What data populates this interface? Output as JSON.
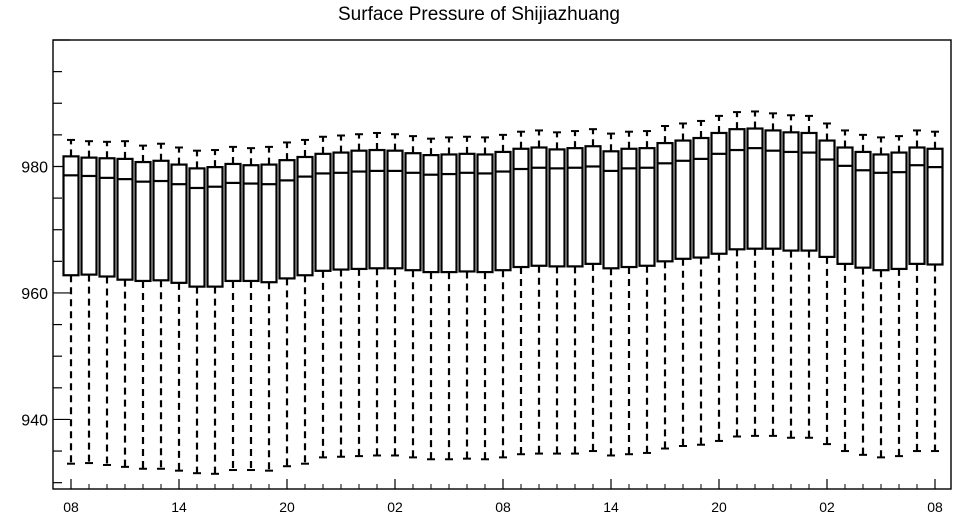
{
  "chart_data": {
    "type": "boxplot",
    "title": "Surface Pressure of Shijiazhuang",
    "xlabel": "",
    "ylabel": "",
    "ylim": [
      929,
      1000
    ],
    "yticks": [
      940,
      960,
      980
    ],
    "xtick_labels": [
      "08",
      "14",
      "20",
      "02",
      "08",
      "14",
      "20",
      "02",
      "08"
    ],
    "xtick_index": [
      0,
      6,
      12,
      18,
      24,
      30,
      36,
      42,
      48
    ],
    "grid": false,
    "n_boxes": 49,
    "series": [
      {
        "q1": [
          962.8,
          962.9,
          962.6,
          962.1,
          961.9,
          962.0,
          961.6,
          961.0,
          961.0,
          961.9,
          961.9,
          961.7,
          962.3,
          962.8,
          963.5,
          963.7,
          963.8,
          963.9,
          963.9,
          963.6,
          963.3,
          963.3,
          963.4,
          963.3,
          963.6,
          964.1,
          964.3,
          964.2,
          964.2,
          964.6,
          963.9,
          964.1,
          964.3,
          965.0,
          965.4,
          965.6,
          966.2,
          966.9,
          967.0,
          967.0,
          966.7,
          966.7,
          965.7,
          964.6,
          964.0,
          963.6,
          963.8,
          964.6,
          964.5
        ],
        "median": [
          978.6,
          978.5,
          978.2,
          978.0,
          977.6,
          977.7,
          977.2,
          976.6,
          976.8,
          977.4,
          977.3,
          977.2,
          977.8,
          978.4,
          978.9,
          979.0,
          979.2,
          979.3,
          979.3,
          979.0,
          978.7,
          978.8,
          979.0,
          978.9,
          979.2,
          979.6,
          979.8,
          979.7,
          979.8,
          980.0,
          979.3,
          979.7,
          979.8,
          980.5,
          980.9,
          981.2,
          982.0,
          982.6,
          982.9,
          982.5,
          982.3,
          982.2,
          981.1,
          980.1,
          979.4,
          979.0,
          979.1,
          980.2,
          979.9
        ],
        "q3": [
          981.6,
          981.4,
          981.3,
          981.2,
          980.7,
          980.9,
          980.3,
          979.7,
          979.9,
          980.4,
          980.2,
          980.3,
          981.0,
          981.5,
          982.0,
          982.2,
          982.5,
          982.6,
          982.5,
          982.1,
          981.8,
          981.9,
          982.0,
          981.9,
          982.3,
          982.8,
          983.0,
          982.7,
          982.9,
          983.2,
          982.4,
          982.8,
          982.9,
          983.7,
          984.1,
          984.5,
          985.3,
          985.9,
          986.0,
          985.7,
          985.4,
          985.3,
          984.1,
          983.0,
          982.3,
          981.9,
          982.2,
          983.0,
          982.8
        ],
        "wmax": [
          984.2,
          984.0,
          983.9,
          984.0,
          983.3,
          983.6,
          983.0,
          982.5,
          982.6,
          983.1,
          982.9,
          983.1,
          983.8,
          984.2,
          984.7,
          984.9,
          985.1,
          985.3,
          985.1,
          984.8,
          984.4,
          984.6,
          984.7,
          984.6,
          985.0,
          985.5,
          985.7,
          985.4,
          985.6,
          985.9,
          985.2,
          985.5,
          985.6,
          986.4,
          986.8,
          987.2,
          988.0,
          988.6,
          988.7,
          988.4,
          988.1,
          988.0,
          986.8,
          985.7,
          985.0,
          984.6,
          984.8,
          985.7,
          985.5
        ],
        "wmin": [
          933.0,
          933.1,
          932.8,
          932.5,
          932.2,
          932.2,
          931.9,
          931.5,
          931.4,
          932.0,
          932.0,
          931.9,
          932.6,
          933.0,
          934.0,
          934.1,
          934.2,
          934.3,
          934.3,
          934.0,
          933.7,
          933.7,
          933.8,
          933.7,
          934.0,
          934.5,
          934.6,
          934.6,
          934.6,
          935.0,
          934.3,
          934.5,
          934.7,
          935.4,
          935.8,
          936.0,
          936.6,
          937.3,
          937.4,
          937.4,
          937.1,
          937.1,
          936.1,
          935.0,
          934.4,
          934.0,
          934.2,
          935.0,
          935.0
        ]
      }
    ]
  }
}
